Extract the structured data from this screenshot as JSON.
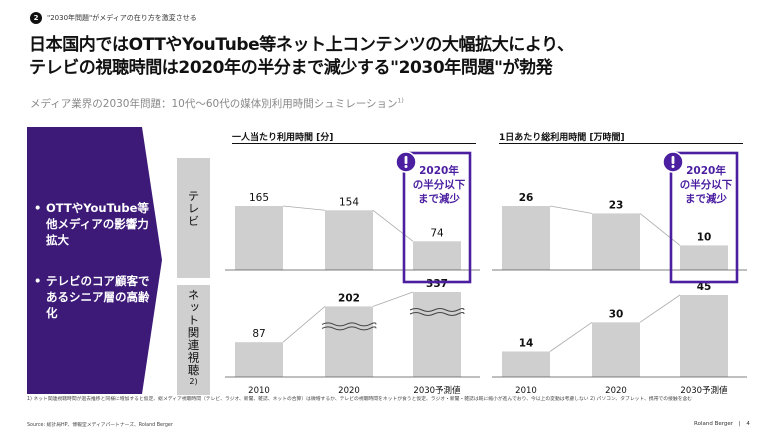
{
  "header": {
    "badge": "2",
    "topic": "\"2030年問題\"がメディアの在り方を激変させる"
  },
  "headline": {
    "line1": "日本国内ではOTTやYouTube等ネット上コンテンツの大幅拡大により、",
    "line2": "テレビの視聴時間は2020年の半分まで減少する\"2030年問題\"が勃発"
  },
  "subtitle": "メディア業界の2030年問題：10代～60代の媒体別利用時間シュミレーション",
  "subtitle_sup": "1)",
  "left_panel": {
    "color": "#3d1a78",
    "bullets": [
      "OTTやYouTube等他メディアの影響力拡大",
      "テレビのコア顧客であるシニア層の高齢化"
    ]
  },
  "row_labels": {
    "tv": "テレビ",
    "net": "ネット関連視聴",
    "net_sup": "2)"
  },
  "callout": {
    "text": [
      "2020年",
      "の半分以下",
      "まで減少"
    ],
    "icon": "exclamation-icon",
    "color": "#4b1fa0"
  },
  "footnote": "1) ネット関連視聴時間が過去推移と同様に増加すると仮定、総メディア視聴時間（テレビ、ラジオ、新聞、雑誌、ネットの合算）は微増するか、テレビの視聴時間をネットが食うと仮定、ラジオ・新聞・雑誌は既に縮小が進んでおり、今以上の変動は考慮しない 2) パソコン、タブレット、携帯での接触を含む",
  "source": "Source: 総計局HP、博報堂メディアパートナーズ、Roland Berger",
  "brand": "Roland Berger",
  "page_number": "4",
  "chart_data": [
    {
      "type": "bar",
      "title": "一人当たり利用時間 [分]",
      "categories": [
        "2010",
        "2020",
        "2030予測値"
      ],
      "series": [
        {
          "name": "テレビ",
          "values": [
            165,
            154,
            74
          ]
        },
        {
          "name": "ネット関連視聴",
          "values": [
            87,
            202,
            337
          ]
        }
      ],
      "bar_color": "#cfcfcf"
    },
    {
      "type": "bar",
      "title": "1日あたり総利用時間 [万時間]",
      "categories": [
        "2010",
        "2020",
        "2030予測値"
      ],
      "series": [
        {
          "name": "テレビ",
          "values": [
            26,
            23,
            10
          ]
        },
        {
          "name": "ネット関連視聴",
          "values": [
            14,
            30,
            45
          ]
        }
      ],
      "bar_color": "#cfcfcf"
    }
  ]
}
